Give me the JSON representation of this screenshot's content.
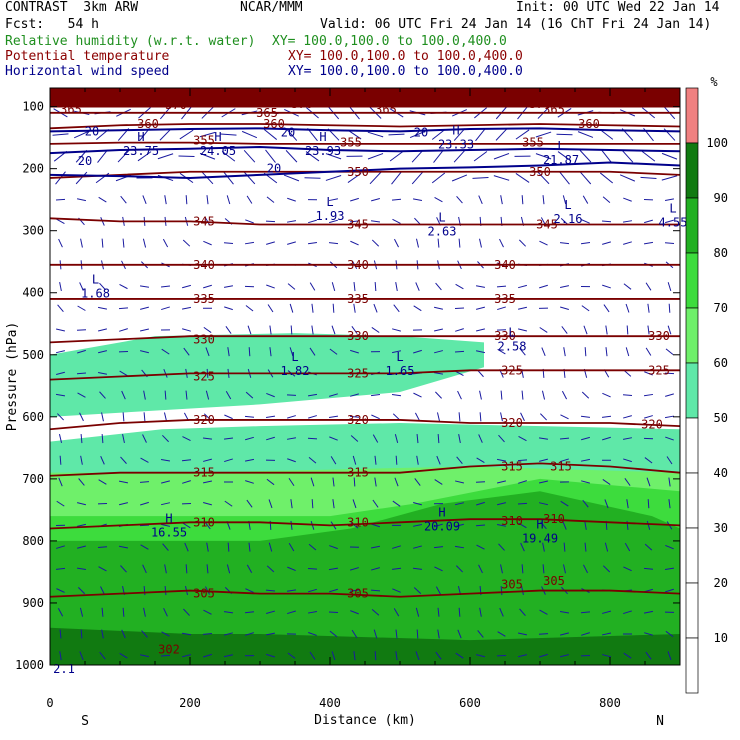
{
  "header": {
    "left1": "CONTRAST  3km ARW",
    "center1": "NCAR/MMM",
    "right1": "Init: 00 UTC Wed 22 Jan 14",
    "left2": "Fcst:   54 h",
    "right2": "Valid: 06 UTC Fri 24 Jan 14 (16 ChT Fri 24 Jan 14)",
    "f1_name": "Relative humidity (w.r.t. water)",
    "f1_xy": "XY= 100.0,100.0 to 100.0,400.0",
    "f2_name": "Potential temperature",
    "f2_xy": "XY= 100.0,100.0 to 100.0,400.0",
    "f3_name": "Horizontal wind speed",
    "f3_xy": "XY= 100.0,100.0 to 100.0,400.0"
  },
  "colors": {
    "rh": [
      "#ffffff",
      "#ffffff",
      "#ffffff",
      "#ffffff",
      "#ffffff",
      "#5fe8a8",
      "#6ff06a",
      "#3ddc3d",
      "#22b022",
      "#117a11",
      "#f08080"
    ],
    "theta": "#7a0000",
    "wind": "#00008b",
    "arrow": "#1a1aa0"
  },
  "chart_data": {
    "type": "heatmap",
    "xlabel": "Distance (km)",
    "ylabel": "Pressure (hPa)",
    "xlim": [
      0,
      900
    ],
    "ylim": [
      1000,
      70
    ],
    "xticks": [
      0,
      200,
      400,
      600,
      800
    ],
    "yticks": [
      100,
      200,
      300,
      400,
      500,
      600,
      700,
      800,
      900,
      1000
    ],
    "x_endpoints": {
      "left": "S",
      "right": "N"
    },
    "colorbar": {
      "unit": "%",
      "levels": [
        10,
        20,
        30,
        40,
        50,
        60,
        70,
        80,
        90,
        100
      ],
      "shaded_from": 50
    },
    "rh_bands": [
      {
        "level": 50,
        "top": [
          [
            0,
            500
          ],
          [
            150,
            470
          ],
          [
            350,
            465
          ],
          [
            500,
            470
          ],
          [
            620,
            480
          ],
          [
            620,
            520
          ],
          [
            500,
            560
          ],
          [
            300,
            580
          ],
          [
            0,
            600
          ]
        ]
      },
      {
        "level": 50,
        "top": [
          [
            0,
            640
          ],
          [
            160,
            620
          ],
          [
            300,
            615
          ],
          [
            500,
            610
          ],
          [
            900,
            620
          ]
        ]
      },
      {
        "level": 60,
        "top": [
          [
            0,
            690
          ],
          [
            200,
            690
          ],
          [
            400,
            685
          ],
          [
            600,
            680
          ],
          [
            900,
            690
          ]
        ]
      },
      {
        "level": 70,
        "top": [
          [
            0,
            760
          ],
          [
            200,
            760
          ],
          [
            400,
            760
          ],
          [
            520,
            740
          ],
          [
            700,
            700
          ],
          [
            900,
            720
          ]
        ]
      },
      {
        "level": 80,
        "top": [
          [
            0,
            800
          ],
          [
            300,
            800
          ],
          [
            430,
            780
          ],
          [
            560,
            740
          ],
          [
            700,
            720
          ],
          [
            860,
            760
          ],
          [
            900,
            780
          ]
        ]
      },
      {
        "level": 90,
        "top": [
          [
            0,
            940
          ],
          [
            200,
            950
          ],
          [
            300,
            950
          ],
          [
            600,
            960
          ],
          [
            900,
            950
          ]
        ]
      }
    ],
    "theta_contours": [
      {
        "level": 305,
        "p": [
          890,
          885,
          880,
          885,
          885,
          890,
          885,
          880,
          880,
          885
        ]
      },
      {
        "level": 310,
        "p": [
          780,
          775,
          770,
          770,
          775,
          770,
          765,
          765,
          770,
          775
        ]
      },
      {
        "level": 315,
        "p": [
          695,
          690,
          690,
          690,
          690,
          690,
          680,
          675,
          680,
          690
        ]
      },
      {
        "level": 320,
        "p": [
          620,
          610,
          605,
          605,
          605,
          605,
          610,
          610,
          610,
          615
        ]
      },
      {
        "level": 325,
        "p": [
          540,
          535,
          530,
          530,
          530,
          530,
          525,
          525,
          525,
          525
        ]
      },
      {
        "level": 330,
        "p": [
          480,
          475,
          470,
          470,
          470,
          470,
          470,
          470,
          470,
          470
        ]
      },
      {
        "level": 335,
        "p": [
          410,
          410,
          410,
          410,
          410,
          410,
          410,
          410,
          410,
          410
        ]
      },
      {
        "level": 340,
        "p": [
          355,
          355,
          355,
          355,
          355,
          355,
          355,
          355,
          355,
          355
        ]
      },
      {
        "level": 345,
        "p": [
          280,
          285,
          285,
          290,
          290,
          290,
          290,
          290,
          290,
          290
        ]
      },
      {
        "level": 350,
        "p": [
          215,
          210,
          205,
          205,
          205,
          205,
          205,
          205,
          205,
          210
        ]
      },
      {
        "level": 355,
        "p": [
          160,
          158,
          158,
          160,
          160,
          160,
          160,
          160,
          160,
          160
        ]
      },
      {
        "level": 360,
        "p": [
          135,
          130,
          128,
          128,
          130,
          132,
          130,
          128,
          130,
          132
        ]
      },
      {
        "level": 365,
        "p": [
          110,
          110,
          110,
          110,
          110,
          110,
          110,
          110,
          110,
          110
        ]
      },
      {
        "level": 370,
        "p": [
          100,
          100,
          100,
          100,
          100,
          100,
          100,
          100,
          100,
          100
        ]
      }
    ],
    "theta_labels": [
      {
        "x": 30,
        "p": 105,
        "text": "365"
      },
      {
        "x": 480,
        "p": 105,
        "text": "365"
      },
      {
        "x": 720,
        "p": 105,
        "text": "365"
      },
      {
        "x": 180,
        "p": 97,
        "text": "370"
      },
      {
        "x": 360,
        "p": 96,
        "text": "370"
      },
      {
        "x": 700,
        "p": 96,
        "text": "370"
      },
      {
        "x": 310,
        "p": 110,
        "text": "365"
      },
      {
        "x": 140,
        "p": 128,
        "text": "360"
      },
      {
        "x": 320,
        "p": 128,
        "text": "360"
      },
      {
        "x": 770,
        "p": 128,
        "text": "360"
      },
      {
        "x": 220,
        "p": 155,
        "text": "355"
      },
      {
        "x": 430,
        "p": 158,
        "text": "355"
      },
      {
        "x": 690,
        "p": 158,
        "text": "355"
      },
      {
        "x": 440,
        "p": 205,
        "text": "350"
      },
      {
        "x": 700,
        "p": 205,
        "text": "350"
      },
      {
        "x": 220,
        "p": 285,
        "text": "345"
      },
      {
        "x": 440,
        "p": 290,
        "text": "345"
      },
      {
        "x": 710,
        "p": 290,
        "text": "345"
      },
      {
        "x": 220,
        "p": 355,
        "text": "340"
      },
      {
        "x": 440,
        "p": 355,
        "text": "340"
      },
      {
        "x": 650,
        "p": 355,
        "text": "340"
      },
      {
        "x": 220,
        "p": 410,
        "text": "335"
      },
      {
        "x": 440,
        "p": 410,
        "text": "335"
      },
      {
        "x": 650,
        "p": 410,
        "text": "335"
      },
      {
        "x": 220,
        "p": 475,
        "text": "330"
      },
      {
        "x": 440,
        "p": 470,
        "text": "330"
      },
      {
        "x": 650,
        "p": 470,
        "text": "330"
      },
      {
        "x": 870,
        "p": 470,
        "text": "330"
      },
      {
        "x": 220,
        "p": 535,
        "text": "325"
      },
      {
        "x": 440,
        "p": 530,
        "text": "325"
      },
      {
        "x": 660,
        "p": 525,
        "text": "325"
      },
      {
        "x": 870,
        "p": 525,
        "text": "325"
      },
      {
        "x": 220,
        "p": 605,
        "text": "320"
      },
      {
        "x": 440,
        "p": 605,
        "text": "320"
      },
      {
        "x": 660,
        "p": 610,
        "text": "320"
      },
      {
        "x": 860,
        "p": 612,
        "text": "320"
      },
      {
        "x": 220,
        "p": 690,
        "text": "315"
      },
      {
        "x": 440,
        "p": 690,
        "text": "315"
      },
      {
        "x": 660,
        "p": 680,
        "text": "315"
      },
      {
        "x": 730,
        "p": 680,
        "text": "315"
      },
      {
        "x": 220,
        "p": 770,
        "text": "310"
      },
      {
        "x": 440,
        "p": 770,
        "text": "310"
      },
      {
        "x": 660,
        "p": 768,
        "text": "310"
      },
      {
        "x": 720,
        "p": 765,
        "text": "310"
      },
      {
        "x": 220,
        "p": 885,
        "text": "305"
      },
      {
        "x": 440,
        "p": 885,
        "text": "305"
      },
      {
        "x": 660,
        "p": 870,
        "text": "305"
      },
      {
        "x": 720,
        "p": 865,
        "text": "305"
      },
      {
        "x": 170,
        "p": 975,
        "text": "302"
      }
    ],
    "wind_contours": [
      {
        "level": 20,
        "p": [
          210,
          212,
          215,
          210,
          205,
          200,
          198,
          195,
          190,
          195
        ]
      },
      {
        "level": 20,
        "p": [
          175,
          170,
          168,
          165,
          170,
          172,
          170,
          168,
          170,
          172
        ]
      },
      {
        "level": 20,
        "p": [
          140,
          138,
          136,
          135,
          138,
          140,
          136,
          135,
          138,
          140
        ]
      }
    ],
    "wind_labels": [
      {
        "x": 60,
        "p": 140,
        "text": "20"
      },
      {
        "x": 340,
        "p": 142,
        "text": "20"
      },
      {
        "x": 530,
        "p": 142,
        "text": "20"
      },
      {
        "x": 50,
        "p": 188,
        "text": "20"
      },
      {
        "x": 320,
        "p": 200,
        "text": "20"
      }
    ],
    "extrema": [
      {
        "x": 130,
        "p": 165,
        "kind": "H",
        "value": "23.75"
      },
      {
        "x": 240,
        "p": 165,
        "kind": "H",
        "value": "24.05"
      },
      {
        "x": 390,
        "p": 165,
        "kind": "H",
        "value": "23.93"
      },
      {
        "x": 580,
        "p": 155,
        "kind": "H",
        "value": "23.33"
      },
      {
        "x": 730,
        "p": 180,
        "kind": "L",
        "value": "21.87"
      },
      {
        "x": 400,
        "p": 270,
        "kind": "L",
        "value": "1.93"
      },
      {
        "x": 560,
        "p": 295,
        "kind": "L",
        "value": "2.63"
      },
      {
        "x": 740,
        "p": 275,
        "kind": "L",
        "value": "2.16"
      },
      {
        "x": 890,
        "p": 280,
        "kind": "L",
        "value": "4.55"
      },
      {
        "x": 65,
        "p": 395,
        "kind": "L",
        "value": "1.68"
      },
      {
        "x": 350,
        "p": 520,
        "kind": "L",
        "value": "1.82"
      },
      {
        "x": 500,
        "p": 520,
        "kind": "L",
        "value": "1.65"
      },
      {
        "x": 660,
        "p": 480,
        "kind": "L",
        "value": "2.58"
      },
      {
        "x": 170,
        "p": 780,
        "kind": "H",
        "value": "16.55"
      },
      {
        "x": 560,
        "p": 770,
        "kind": "H",
        "value": "20.09"
      },
      {
        "x": 700,
        "p": 790,
        "kind": "H",
        "value": "19.49"
      },
      {
        "x": 20,
        "p": 1000,
        "kind": "",
        "value": "2.1"
      }
    ]
  }
}
